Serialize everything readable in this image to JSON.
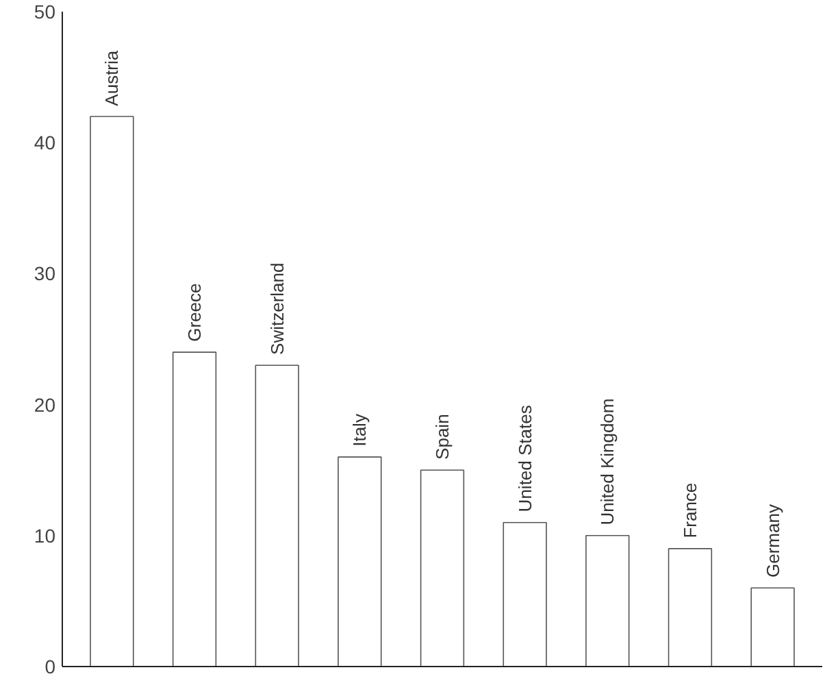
{
  "chart_data": {
    "type": "bar",
    "categories": [
      "Austria",
      "Greece",
      "Switzerland",
      "Italy",
      "Spain",
      "United States",
      "United Kingdom",
      "France",
      "Germany"
    ],
    "values": [
      42,
      24,
      23,
      16,
      15,
      11,
      10,
      9,
      6
    ],
    "color": "#ffffff",
    "ylim": [
      0,
      50
    ],
    "yticks": [
      0,
      10,
      20,
      30,
      40,
      50
    ],
    "grid": false,
    "tick_labels": "y"
  }
}
